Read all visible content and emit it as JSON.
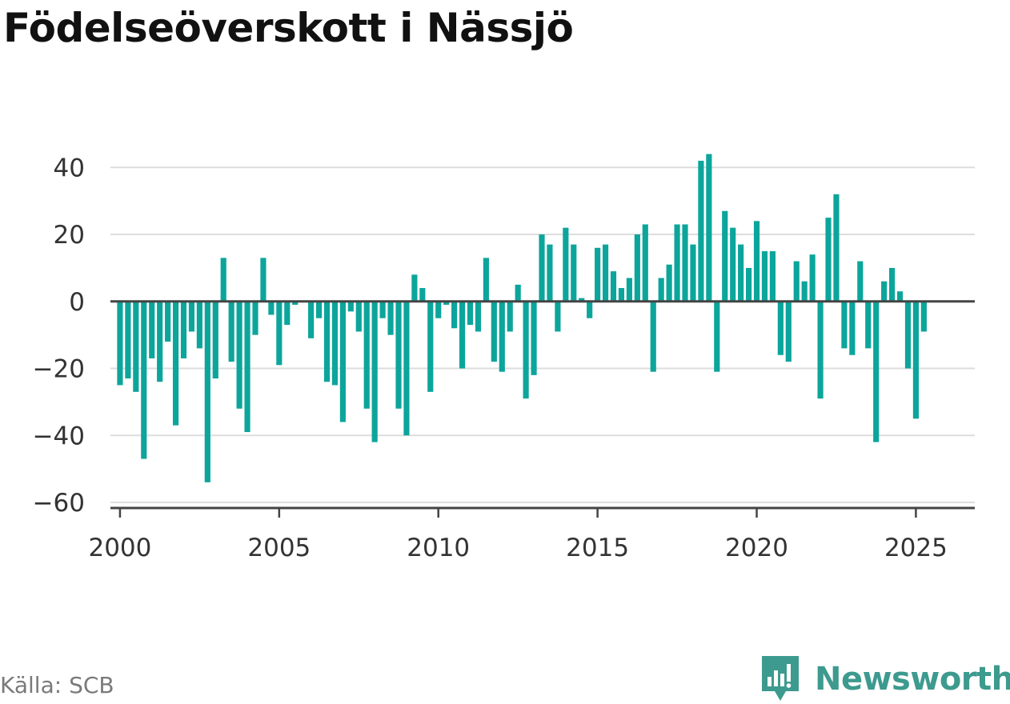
{
  "title": "Födelseöverskott i Nässjö",
  "source": "Källa: SCB",
  "brand": "Newsworthy",
  "colors": {
    "bar": "#0ca59b",
    "grid": "#dddddd",
    "axis": "#444444",
    "brand": "#3d9a8e"
  },
  "chart_data": {
    "type": "bar",
    "title": "Födelseöverskott i Nässjö",
    "xlabel": "",
    "ylabel": "",
    "ylim": [
      -60,
      47
    ],
    "xlim": [
      1999.7,
      2026.85
    ],
    "yticks": [
      -60,
      -40,
      -20,
      0,
      20,
      40
    ],
    "xticks": [
      2000,
      2005,
      2010,
      2015,
      2020,
      2025
    ],
    "ytick_labels": [
      "−60",
      "−40",
      "−20",
      "0",
      "20",
      "40"
    ],
    "xtick_labels": [
      "2000",
      "2005",
      "2010",
      "2015",
      "2020",
      "2025"
    ],
    "grid": true,
    "period": "quarterly",
    "start": "2000 Q1",
    "values": [
      -25,
      -23,
      -27,
      -47,
      -17,
      -24,
      -12,
      -37,
      -17,
      -9,
      -14,
      -54,
      -23,
      13,
      -18,
      -32,
      -39,
      -10,
      13,
      -4,
      -19,
      -7,
      -1,
      0,
      -11,
      -5,
      -24,
      -25,
      -36,
      -3,
      -9,
      -32,
      -42,
      -5,
      -10,
      -32,
      -40,
      8,
      4,
      -27,
      -5,
      -1,
      -8,
      -20,
      -7,
      -9,
      13,
      -18,
      -21,
      -9,
      5,
      -29,
      -22,
      20,
      17,
      -9,
      22,
      17,
      1,
      -5,
      16,
      17,
      9,
      4,
      7,
      20,
      23,
      -21,
      7,
      11,
      23,
      23,
      17,
      42,
      44,
      -21,
      27,
      22,
      17,
      10,
      24,
      15,
      15,
      -16,
      -18,
      12,
      6,
      14,
      -29,
      25,
      32,
      -14,
      -16,
      12,
      -14,
      -42,
      6,
      10,
      3,
      -20,
      -35,
      -9
    ]
  }
}
